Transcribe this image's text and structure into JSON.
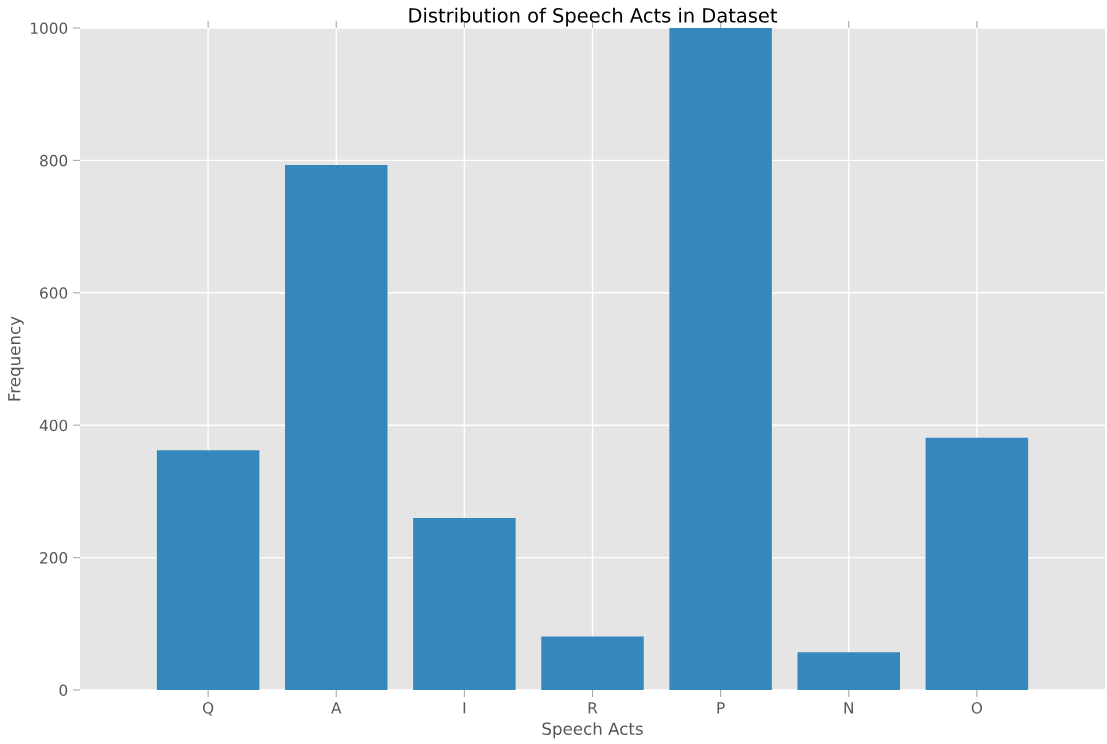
{
  "chart_data": {
    "type": "bar",
    "title": "Distribution of Speech Acts in Dataset",
    "xlabel": "Speech Acts",
    "ylabel": "Frequency",
    "categories": [
      "Q",
      "A",
      "I",
      "R",
      "P",
      "N",
      "O"
    ],
    "series": [
      {
        "color": "#3588bd",
        "values": [
          362,
          793,
          260,
          81,
          1000,
          57,
          381
        ]
      }
    ],
    "ylim": [
      0,
      1000
    ],
    "yticks": [
      0,
      200,
      400,
      600,
      800,
      1000
    ],
    "grid": true
  }
}
